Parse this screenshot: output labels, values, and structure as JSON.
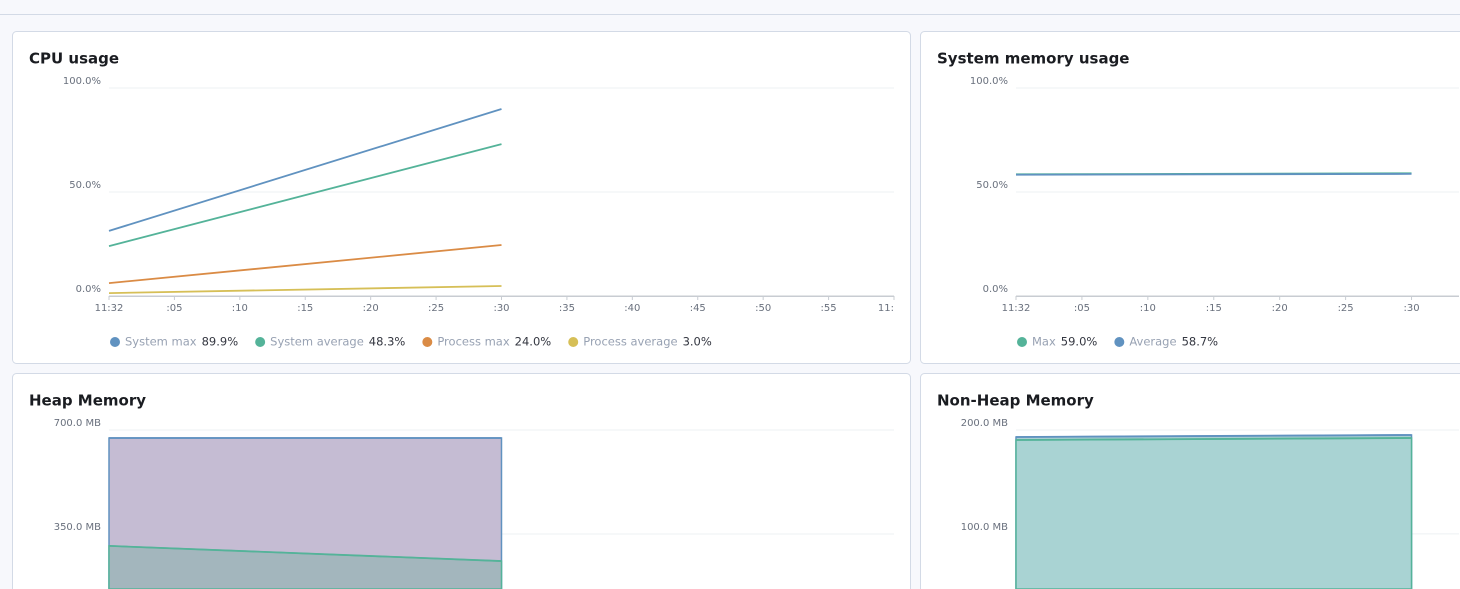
{
  "chart_data": [
    {
      "type": "line",
      "title": "CPU usage",
      "x": [
        0,
        30
      ],
      "xlim": [
        0,
        60
      ],
      "xticks": [
        {
          "value": 0,
          "label": "11:32"
        },
        {
          "value": 5,
          "label": ":05"
        },
        {
          "value": 10,
          "label": ":10"
        },
        {
          "value": 15,
          "label": ":15"
        },
        {
          "value": 20,
          "label": ":20"
        },
        {
          "value": 25,
          "label": ":25"
        },
        {
          "value": 30,
          "label": ":30"
        },
        {
          "value": 35,
          "label": ":35"
        },
        {
          "value": 40,
          "label": ":40"
        },
        {
          "value": 45,
          "label": ":45"
        },
        {
          "value": 50,
          "label": ":50"
        },
        {
          "value": 55,
          "label": ":55"
        },
        {
          "value": 60,
          "label": "11:"
        }
      ],
      "ylim": [
        0,
        100
      ],
      "yticks": [
        {
          "value": 0,
          "label": "0.0%"
        },
        {
          "value": 50,
          "label": "50.0%"
        },
        {
          "value": 100,
          "label": "100.0%"
        }
      ],
      "grid": true,
      "series": [
        {
          "name": "System max",
          "legend_value": "89.9%",
          "color": "#6092c0",
          "values": [
            31.3,
            89.9
          ]
        },
        {
          "name": "System average",
          "legend_value": "48.3%",
          "color": "#54b399",
          "values": [
            24,
            73
          ]
        },
        {
          "name": "Process max",
          "legend_value": "24.0%",
          "color": "#da8b45",
          "values": [
            6.2,
            24.5
          ]
        },
        {
          "name": "Process average",
          "legend_value": "3.0%",
          "color": "#d6bf57",
          "values": [
            1.4,
            4.8
          ]
        }
      ]
    },
    {
      "type": "line",
      "title": "System memory usage",
      "x": [
        0,
        30
      ],
      "xlim": [
        0,
        33.6
      ],
      "xticks": [
        {
          "value": 0,
          "label": "11:32"
        },
        {
          "value": 5,
          "label": ":05"
        },
        {
          "value": 10,
          "label": ":10"
        },
        {
          "value": 15,
          "label": ":15"
        },
        {
          "value": 20,
          "label": ":20"
        },
        {
          "value": 25,
          "label": ":25"
        },
        {
          "value": 30,
          "label": ":30"
        }
      ],
      "ylim": [
        0,
        100
      ],
      "yticks": [
        {
          "value": 0,
          "label": "0.0%"
        },
        {
          "value": 50,
          "label": "50.0%"
        },
        {
          "value": 100,
          "label": "100.0%"
        }
      ],
      "grid": true,
      "series": [
        {
          "name": "Max",
          "legend_value": "59.0%",
          "color": "#54b399",
          "values": [
            58.5,
            59.0
          ]
        },
        {
          "name": "Average",
          "legend_value": "58.7%",
          "color": "#6092c0",
          "values": [
            58.3,
            58.7
          ]
        }
      ]
    },
    {
      "type": "area",
      "title": "Heap Memory",
      "x": [
        0,
        30
      ],
      "xlim": [
        0,
        60
      ],
      "ylim": [
        165,
        700
      ],
      "yticks": [
        {
          "value": 350,
          "label": "350.0 MB"
        },
        {
          "value": 700,
          "label": "700.0 MB"
        }
      ],
      "grid": true,
      "series": [
        {
          "color": "#6092c0",
          "fill": "#c5bcd3",
          "values": [
            673,
            673
          ]
        },
        {
          "color": "#54b399",
          "fill": "#a3b6bd",
          "values": [
            310,
            259
          ]
        }
      ]
    },
    {
      "type": "area",
      "title": "Non-Heap Memory",
      "x": [
        0,
        30
      ],
      "xlim": [
        0,
        33.6
      ],
      "ylim": [
        47,
        200
      ],
      "yticks": [
        {
          "value": 100,
          "label": "100.0 MB"
        },
        {
          "value": 200,
          "label": "200.0 MB"
        }
      ],
      "grid": true,
      "series": [
        {
          "color": "#6092c0",
          "fill": "#a9cfd2",
          "values": [
            193.3,
            195.2
          ]
        },
        {
          "color": "#54b399",
          "fill": "#a9d3d3",
          "values": [
            190.4,
            192.3
          ]
        }
      ]
    }
  ]
}
